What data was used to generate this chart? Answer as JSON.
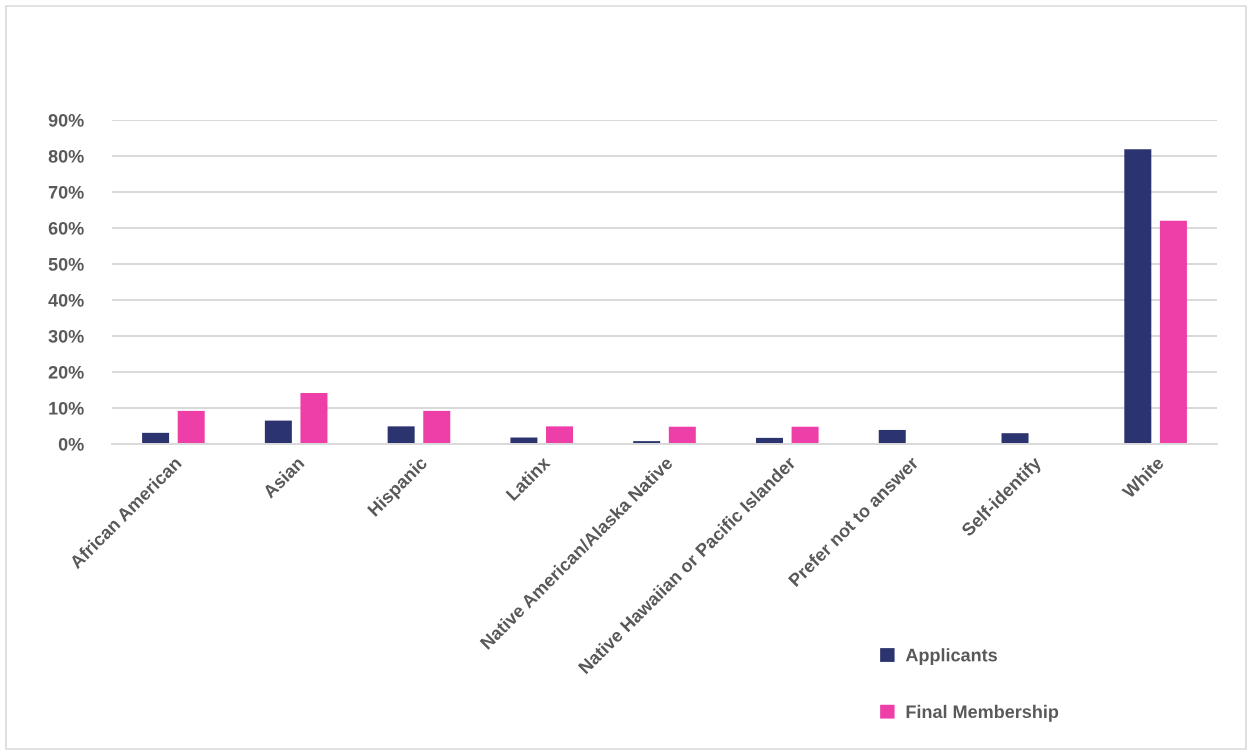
{
  "chart_data": {
    "type": "bar",
    "categories": [
      "African American",
      "Asian",
      "Hispanic",
      "Latinx",
      "Native American/Alaska Native",
      "Native Hawaiian or Pacific Islander",
      "Prefer not to answer",
      "Self-identify",
      "White"
    ],
    "series": [
      {
        "name": "Applicants",
        "color": "#2b346e",
        "values": [
          3.1,
          6.5,
          4.9,
          1.8,
          0.8,
          1.7,
          3.9,
          3.0,
          81.9
        ]
      },
      {
        "name": "Final Membership",
        "color": "#ee3fa9",
        "values": [
          9.2,
          14.2,
          9.2,
          4.9,
          4.8,
          4.8,
          0,
          0,
          62.0
        ]
      }
    ],
    "ylim": [
      0,
      90
    ],
    "yticks": [
      {
        "value": 0,
        "label": "0%"
      },
      {
        "value": 10,
        "label": "10%"
      },
      {
        "value": 20,
        "label": "20%"
      },
      {
        "value": 30,
        "label": "30%"
      },
      {
        "value": 40,
        "label": "40%"
      },
      {
        "value": 50,
        "label": "50%"
      },
      {
        "value": 60,
        "label": "60%"
      },
      {
        "value": 70,
        "label": "70%"
      },
      {
        "value": 80,
        "label": "80%"
      },
      {
        "value": 90,
        "label": "90%"
      }
    ],
    "grid": "y",
    "legend": "bottom right"
  }
}
